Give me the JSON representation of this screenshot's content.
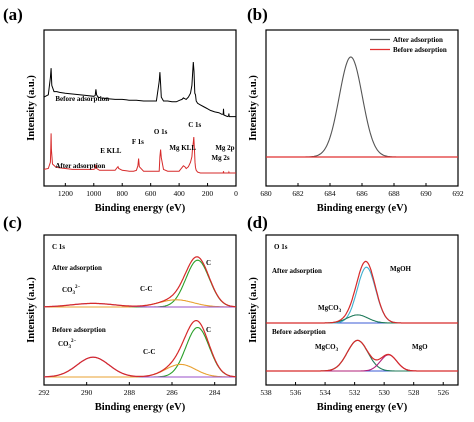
{
  "chart_data": [
    {
      "panel": "(a)",
      "type": "line",
      "xlabel": "Binding energy (eV)",
      "ylabel": "Intensity (a.u.)",
      "xlim": [
        1350,
        0
      ],
      "xticks": [
        1200,
        1000,
        800,
        600,
        400,
        200,
        0
      ],
      "series": [
        {
          "name": "Before adsorption",
          "color": "#000000",
          "x": [
            1350,
            1320,
            1305,
            1300,
            1295,
            1280,
            1260,
            1240,
            1200,
            1150,
            1100,
            1050,
            1000,
            990,
            985,
            980,
            970,
            950,
            900,
            850,
            800,
            750,
            700,
            650,
            600,
            560,
            540,
            535,
            530,
            525,
            510,
            480,
            450,
            420,
            395,
            380,
            370,
            360,
            350,
            335,
            320,
            310,
            305,
            300,
            295,
            290,
            285,
            280,
            270,
            250,
            230,
            210,
            200,
            180,
            150,
            120,
            100,
            90,
            88,
            85,
            60,
            52,
            50,
            48,
            30,
            10,
            0
          ],
          "y": [
            55,
            58,
            80,
            92,
            70,
            62,
            62,
            61,
            60,
            59,
            58,
            57,
            56,
            57,
            65,
            58,
            55,
            54,
            53,
            52,
            52,
            51,
            51,
            50,
            50,
            50,
            75,
            87,
            72,
            55,
            50,
            50,
            49,
            49,
            51,
            52,
            54,
            53,
            52,
            55,
            60,
            70,
            85,
            100,
            88,
            60,
            58,
            50,
            47,
            45,
            43,
            41,
            40,
            38,
            36,
            35,
            33,
            33,
            40,
            32,
            30,
            31,
            34,
            30,
            30,
            30,
            30
          ]
        },
        {
          "name": "After adsorption",
          "color": "#d62a2a",
          "x": [
            1350,
            1320,
            1305,
            1302,
            1300,
            1298,
            1290,
            1270,
            1250,
            1200,
            1150,
            1100,
            1050,
            1000,
            990,
            985,
            980,
            960,
            900,
            850,
            835,
            830,
            825,
            800,
            750,
            720,
            700,
            690,
            685,
            680,
            650,
            600,
            560,
            540,
            535,
            530,
            525,
            510,
            480,
            450,
            420,
            400,
            390,
            380,
            370,
            360,
            350,
            335,
            320,
            310,
            305,
            300,
            297,
            292,
            288,
            285,
            280,
            270,
            250,
            230,
            210,
            200,
            180,
            150,
            120,
            100,
            90,
            88,
            86,
            70,
            60,
            52,
            50,
            48,
            30,
            10,
            0
          ],
          "y": [
            4,
            5,
            12,
            28,
            44,
            26,
            10,
            7,
            6,
            5,
            4,
            4,
            4,
            4,
            5,
            9,
            5,
            3,
            3,
            3,
            6,
            7,
            5,
            3,
            2,
            2,
            3,
            8,
            16,
            7,
            2,
            2,
            2,
            2,
            18,
            26,
            17,
            4,
            2,
            2,
            2,
            2,
            4,
            6,
            8,
            7,
            5,
            7,
            12,
            18,
            28,
            34,
            40,
            25,
            12,
            6,
            3,
            1,
            0,
            0,
            0,
            0,
            0,
            0,
            0,
            0,
            0,
            2,
            0,
            0,
            0,
            0,
            1,
            0,
            0,
            0,
            0
          ]
        }
      ],
      "annotations": [
        "Before adsorption",
        "After adsorption",
        "E KLL",
        "F 1s",
        "O 1s",
        "Mg KLL",
        "C 1s",
        "Mg 2p",
        "Mg 2s"
      ]
    },
    {
      "panel": "(b)",
      "type": "line",
      "xlabel": "Binding energy (eV)",
      "ylabel": "Intensity (a.u.)",
      "xlim": [
        680,
        692
      ],
      "xticks": [
        680,
        682,
        684,
        686,
        688,
        690,
        692
      ],
      "legend": "top-right",
      "series": [
        {
          "name": "After adsorption",
          "color": "#555555",
          "peak": 685.3,
          "sigma": 0.72,
          "height": 100
        },
        {
          "name": "Before adsorption",
          "color": "#e03030",
          "peak": 685.3,
          "sigma": 1.0,
          "height": 0
        }
      ]
    },
    {
      "panel": "(c)",
      "type": "line",
      "title": "C 1s",
      "xlabel": "Binding energy (eV)",
      "ylabel": "Intensity (a.u.)",
      "xlim": [
        292,
        283
      ],
      "xticks": [
        292,
        290,
        288,
        286,
        284
      ],
      "groups": [
        {
          "label": "After adsorption",
          "components": [
            {
              "name": "C",
              "center": 284.8,
              "sigma": 0.55,
              "height": 52,
              "color": "#2aa02a"
            },
            {
              "name": "C-C",
              "center": 285.8,
              "sigma": 0.8,
              "height": 8,
              "color": "#e8a030"
            },
            {
              "name": "CO3 2-",
              "center": 289.7,
              "sigma": 1.0,
              "height": 4,
              "color": "#9a4fc8"
            }
          ]
        },
        {
          "label": "Before adsorption",
          "components": [
            {
              "name": "C",
              "center": 284.8,
              "sigma": 0.55,
              "height": 55,
              "color": "#2aa02a"
            },
            {
              "name": "C-C",
              "center": 285.6,
              "sigma": 0.7,
              "height": 14,
              "color": "#e8a030"
            },
            {
              "name": "CO3 2-",
              "center": 289.7,
              "sigma": 0.75,
              "height": 22,
              "color": "#9a4fc8"
            }
          ]
        }
      ],
      "annotations": [
        "After adsorption",
        "Before adsorption",
        "C",
        "C-C",
        "CO3 2-"
      ]
    },
    {
      "panel": "(d)",
      "type": "line",
      "title": "O 1s",
      "xlabel": "Binding energy (eV)",
      "ylabel": "Intensity (a.u.)",
      "xlim": [
        538,
        525
      ],
      "xticks": [
        538,
        536,
        534,
        532,
        530,
        528,
        526
      ],
      "groups": [
        {
          "label": "After adsorption",
          "components": [
            {
              "name": "MgOH",
              "center": 531.2,
              "sigma": 0.62,
              "height": 62,
              "color": "#40b0d0"
            },
            {
              "name": "MgCO3",
              "center": 531.8,
              "sigma": 0.7,
              "height": 9,
              "color": "#1f7a5a"
            }
          ]
        },
        {
          "label": "Before adsorption",
          "components": [
            {
              "name": "MgCO3",
              "center": 531.8,
              "sigma": 0.7,
              "height": 34,
              "color": "#1f7a5a"
            },
            {
              "name": "MgO",
              "center": 529.7,
              "sigma": 0.55,
              "height": 18,
              "color": "#b0207a"
            }
          ]
        }
      ],
      "annotations": [
        "After adsorption",
        "Before adsorption",
        "MgOH",
        "MgCO3",
        "MgCO3",
        "MgO"
      ]
    }
  ]
}
